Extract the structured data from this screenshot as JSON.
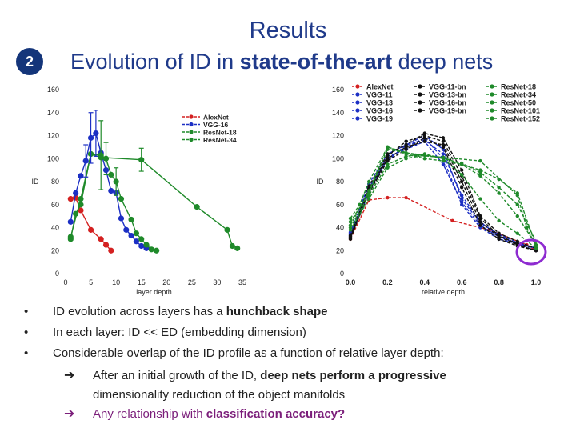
{
  "slide": {
    "title": "Results",
    "badge": "2",
    "subtitle_pre": "Evolution of ID in ",
    "subtitle_bold": "state-of-the-art",
    "subtitle_post": " deep nets"
  },
  "bullets": [
    {
      "dot": "•",
      "pre": "ID evolution across layers has a ",
      "bold": "hunchback shape",
      "post": ""
    },
    {
      "dot": "•",
      "pre": "In each layer: ID << ED (embedding dimension)",
      "bold": "",
      "post": ""
    },
    {
      "dot": "•",
      "pre": "Considerable overlap of the ID profile as a function of relative layer depth:",
      "bold": "",
      "post": ""
    }
  ],
  "subpoints": [
    {
      "arrow": "➔",
      "pre": "After an initial growth of the ID, ",
      "bold": "deep nets perform a progressive",
      "line2": "dimensionality reduction of the object manifolds"
    },
    {
      "arrow": "➔",
      "pre": "Any relationship with ",
      "bold": "classification accuracy?",
      "line2": ""
    }
  ],
  "colors": {
    "alexnet": "#d42020",
    "vgg": "#1c2fc4",
    "resnet": "#1f8a2a",
    "vggbn": "#111111",
    "highlight": "#8e2bd0"
  },
  "chart_data": [
    {
      "type": "line",
      "xlabel": "layer depth",
      "ylabel": "ID",
      "xlim": [
        0,
        35
      ],
      "ylim": [
        0,
        160
      ],
      "xticks": [
        0,
        5,
        10,
        15,
        20,
        25,
        30,
        35
      ],
      "yticks": [
        0,
        20,
        40,
        60,
        80,
        100,
        120,
        140,
        160
      ],
      "legend": [
        "AlexNet",
        "VGG-16",
        "ResNet-18",
        "ResNet-34"
      ],
      "series": [
        {
          "name": "AlexNet",
          "color": "#d42020",
          "x": [
            1,
            2,
            3,
            5,
            7,
            8,
            9
          ],
          "y": [
            65,
            66,
            55,
            38,
            30,
            25,
            20
          ]
        },
        {
          "name": "VGG-16",
          "color": "#1c2fc4",
          "x": [
            1,
            2,
            3,
            4,
            5,
            6,
            7,
            8,
            9,
            10,
            11,
            12,
            13,
            14,
            15,
            16
          ],
          "y": [
            45,
            70,
            85,
            98,
            118,
            122,
            105,
            90,
            72,
            70,
            48,
            38,
            33,
            28,
            24,
            22
          ]
        },
        {
          "name": "ResNet-18",
          "color": "#1f8a2a",
          "x": [
            1,
            3,
            5,
            7,
            8,
            9,
            10,
            11,
            13,
            14,
            15,
            16,
            17,
            18
          ],
          "y": [
            32,
            65,
            104,
            103,
            100,
            86,
            80,
            65,
            47,
            35,
            30,
            25,
            21,
            20
          ]
        },
        {
          "name": "ResNet-34",
          "color": "#1f8a2a",
          "x": [
            1,
            2,
            3,
            5,
            7,
            15,
            26,
            32,
            33,
            34
          ],
          "y": [
            30,
            52,
            60,
            104,
            101,
            99,
            58,
            38,
            24,
            22
          ]
        }
      ]
    },
    {
      "type": "line",
      "xlabel": "relative depth",
      "ylabel": "ID",
      "xlim": [
        0.0,
        1.0
      ],
      "ylim": [
        0,
        160
      ],
      "xticks": [
        0.0,
        0.2,
        0.4,
        0.6,
        0.8,
        1.0
      ],
      "yticks": [
        0,
        20,
        40,
        60,
        80,
        100,
        120,
        140,
        160
      ],
      "legend": [
        "AlexNet",
        "VGG-11",
        "VGG-13",
        "VGG-16",
        "VGG-19",
        "VGG-11-bn",
        "VGG-13-bn",
        "VGG-16-bn",
        "VGG-19-bn",
        "ResNet-18",
        "ResNet-34",
        "ResNet-50",
        "ResNet-101",
        "ResNet-152"
      ],
      "series": [
        {
          "name": "AlexNet",
          "color": "#d42020",
          "x": [
            0.0,
            0.1,
            0.2,
            0.3,
            0.55,
            0.75,
            0.95,
            1.0
          ],
          "y": [
            30,
            64,
            66,
            66,
            46,
            38,
            25,
            20
          ]
        },
        {
          "name": "VGG-11",
          "color": "#1c2fc4",
          "x": [
            0.0,
            0.1,
            0.2,
            0.3,
            0.4,
            0.5,
            0.6,
            0.7,
            0.8,
            1.0
          ],
          "y": [
            32,
            70,
            100,
            110,
            118,
            100,
            60,
            40,
            30,
            22
          ]
        },
        {
          "name": "VGG-13",
          "color": "#1c2fc4",
          "x": [
            0.0,
            0.1,
            0.2,
            0.3,
            0.4,
            0.5,
            0.6,
            0.7,
            0.8,
            0.9,
            1.0
          ],
          "y": [
            34,
            72,
            102,
            108,
            115,
            95,
            62,
            42,
            32,
            26,
            22
          ]
        },
        {
          "name": "VGG-16",
          "color": "#1c2fc4",
          "x": [
            0.0,
            0.1,
            0.2,
            0.3,
            0.4,
            0.5,
            0.6,
            0.7,
            0.8,
            0.9,
            1.0
          ],
          "y": [
            36,
            75,
            98,
            112,
            120,
            108,
            65,
            44,
            34,
            27,
            22
          ]
        },
        {
          "name": "VGG-19",
          "color": "#1c2fc4",
          "x": [
            0.0,
            0.1,
            0.2,
            0.3,
            0.4,
            0.5,
            0.6,
            0.7,
            0.8,
            0.9,
            1.0
          ],
          "y": [
            35,
            78,
            104,
            112,
            116,
            104,
            68,
            45,
            33,
            26,
            20
          ]
        },
        {
          "name": "VGG-11-bn",
          "color": "#111111",
          "x": [
            0.0,
            0.1,
            0.2,
            0.3,
            0.4,
            0.5,
            0.6,
            0.7,
            0.8,
            0.9,
            1.0
          ],
          "y": [
            30,
            72,
            100,
            110,
            115,
            112,
            80,
            45,
            32,
            25,
            20
          ]
        },
        {
          "name": "VGG-13-bn",
          "color": "#111111",
          "x": [
            0.0,
            0.1,
            0.2,
            0.3,
            0.4,
            0.5,
            0.6,
            0.7,
            0.8,
            0.9,
            1.0
          ],
          "y": [
            31,
            70,
            98,
            108,
            118,
            110,
            75,
            42,
            30,
            24,
            20
          ]
        },
        {
          "name": "VGG-16-bn",
          "color": "#111111",
          "x": [
            0.0,
            0.1,
            0.2,
            0.3,
            0.4,
            0.5,
            0.6,
            0.7,
            0.8,
            0.9,
            1.0
          ],
          "y": [
            33,
            74,
            102,
            115,
            120,
            115,
            85,
            48,
            33,
            26,
            22
          ]
        },
        {
          "name": "VGG-19-bn",
          "color": "#111111",
          "x": [
            0.0,
            0.1,
            0.2,
            0.3,
            0.4,
            0.5,
            0.6,
            0.7,
            0.8,
            0.9,
            1.0
          ],
          "y": [
            32,
            76,
            104,
            112,
            122,
            118,
            90,
            50,
            35,
            28,
            22
          ]
        },
        {
          "name": "ResNet-18",
          "color": "#1f8a2a",
          "x": [
            0.0,
            0.1,
            0.2,
            0.3,
            0.4,
            0.5,
            0.6,
            0.7,
            0.8,
            0.9,
            1.0
          ],
          "y": [
            45,
            70,
            108,
            105,
            103,
            100,
            86,
            65,
            46,
            35,
            22
          ]
        },
        {
          "name": "ResNet-34",
          "color": "#1f8a2a",
          "x": [
            0.0,
            0.05,
            0.1,
            0.2,
            0.35,
            0.5,
            0.7,
            0.9,
            0.95,
            1.0
          ],
          "y": [
            48,
            60,
            80,
            110,
            103,
            101,
            98,
            68,
            40,
            24
          ]
        },
        {
          "name": "ResNet-50",
          "color": "#1f8a2a",
          "x": [
            0.0,
            0.1,
            0.2,
            0.3,
            0.4,
            0.5,
            0.6,
            0.7,
            0.8,
            0.9,
            1.0
          ],
          "y": [
            38,
            65,
            92,
            100,
            103,
            101,
            95,
            85,
            70,
            50,
            25
          ]
        },
        {
          "name": "ResNet-101",
          "color": "#1f8a2a",
          "x": [
            0.0,
            0.1,
            0.2,
            0.3,
            0.4,
            0.5,
            0.6,
            0.7,
            0.8,
            0.9,
            1.0
          ],
          "y": [
            40,
            68,
            95,
            102,
            104,
            100,
            96,
            88,
            75,
            60,
            28
          ]
        },
        {
          "name": "ResNet-152",
          "color": "#1f8a2a",
          "x": [
            0.0,
            0.1,
            0.2,
            0.3,
            0.4,
            0.5,
            0.6,
            0.7,
            0.8,
            0.9,
            1.0
          ],
          "y": [
            42,
            72,
            110,
            104,
            100,
            98,
            95,
            90,
            82,
            70,
            24
          ]
        }
      ]
    }
  ]
}
